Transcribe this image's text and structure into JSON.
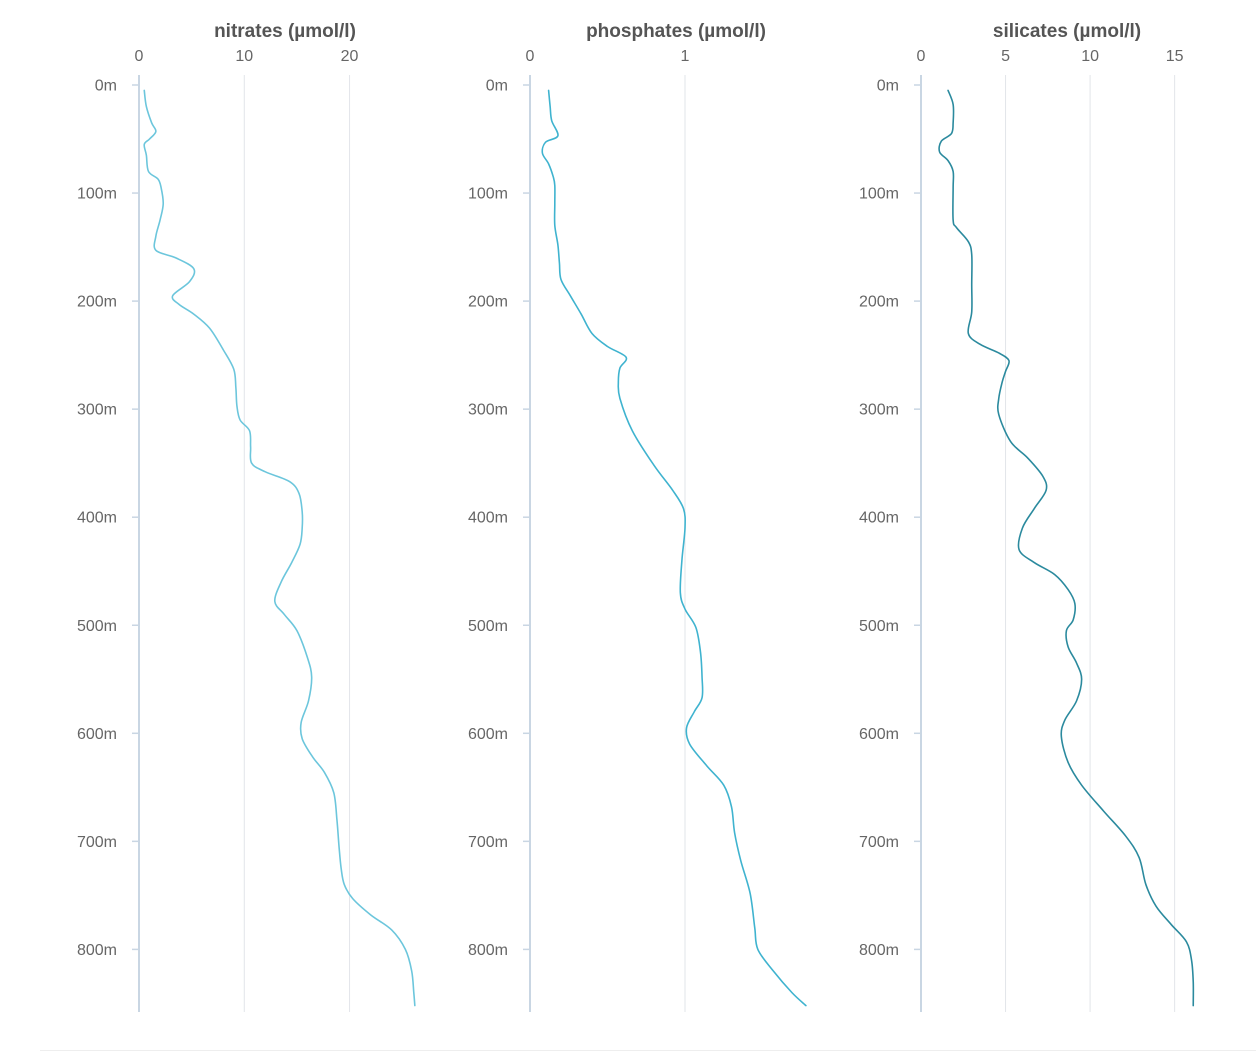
{
  "chart_data": [
    {
      "type": "line",
      "title": "nitrates (µmol/l)",
      "xlabel": "nitrates (µmol/l)",
      "ylabel": "",
      "xlim": [
        0,
        26.5
      ],
      "ylim": [
        0,
        860
      ],
      "y_reversed": true,
      "grid": true,
      "x_ticks": [
        0,
        10,
        20
      ],
      "x_tick_labels": [
        "0",
        "10",
        "20"
      ],
      "y_ticks": [
        0,
        100,
        200,
        300,
        400,
        500,
        600,
        700,
        800
      ],
      "y_tick_labels": [
        "0m",
        "100m",
        "200m",
        "300m",
        "400m",
        "500m",
        "600m",
        "700m",
        "800m"
      ],
      "color": "#6cc6dc",
      "series": [
        {
          "points": [
            [
              0.5,
              5
            ],
            [
              0.7,
              20
            ],
            [
              1.2,
              35
            ],
            [
              1.6,
              43
            ],
            [
              1.0,
              50
            ],
            [
              0.5,
              55
            ],
            [
              0.7,
              65
            ],
            [
              0.9,
              80
            ],
            [
              1.8,
              87
            ],
            [
              2.1,
              95
            ],
            [
              2.3,
              110
            ],
            [
              2.0,
              125
            ],
            [
              1.6,
              140
            ],
            [
              1.6,
              153
            ],
            [
              3.5,
              160
            ],
            [
              5.2,
              170
            ],
            [
              4.8,
              182
            ],
            [
              3.2,
              195
            ],
            [
              3.8,
              203
            ],
            [
              5.2,
              212
            ],
            [
              6.7,
              225
            ],
            [
              8.0,
              245
            ],
            [
              9.0,
              263
            ],
            [
              9.2,
              280
            ],
            [
              9.3,
              297
            ],
            [
              9.6,
              310
            ],
            [
              10.5,
              320
            ],
            [
              10.6,
              335
            ],
            [
              10.7,
              350
            ],
            [
              12.0,
              358
            ],
            [
              14.3,
              367
            ],
            [
              15.2,
              378
            ],
            [
              15.5,
              395
            ],
            [
              15.5,
              410
            ],
            [
              15.3,
              425
            ],
            [
              14.5,
              442
            ],
            [
              13.5,
              460
            ],
            [
              12.9,
              478
            ],
            [
              13.8,
              490
            ],
            [
              15.0,
              505
            ],
            [
              16.0,
              530
            ],
            [
              16.4,
              548
            ],
            [
              16.1,
              570
            ],
            [
              15.4,
              590
            ],
            [
              15.5,
              605
            ],
            [
              16.5,
              622
            ],
            [
              17.6,
              636
            ],
            [
              18.5,
              655
            ],
            [
              18.8,
              680
            ],
            [
              19.0,
              705
            ],
            [
              19.2,
              725
            ],
            [
              19.5,
              740
            ],
            [
              20.3,
              753
            ],
            [
              22.0,
              768
            ],
            [
              24.0,
              782
            ],
            [
              25.3,
              800
            ],
            [
              25.9,
              820
            ],
            [
              26.1,
              840
            ],
            [
              26.2,
              852
            ]
          ]
        }
      ]
    },
    {
      "type": "line",
      "title": "phosphates (µmol/l)",
      "xlabel": "phosphates (µmol/l)",
      "ylabel": "",
      "xlim": [
        0,
        1.8
      ],
      "ylim": [
        0,
        860
      ],
      "y_reversed": true,
      "grid": true,
      "x_ticks": [
        0,
        1
      ],
      "x_tick_labels": [
        "0",
        "1"
      ],
      "y_ticks": [
        0,
        100,
        200,
        300,
        400,
        500,
        600,
        700,
        800
      ],
      "y_tick_labels": [
        "0m",
        "100m",
        "200m",
        "300m",
        "400m",
        "500m",
        "600m",
        "700m",
        "800m"
      ],
      "color": "#3fb3cf",
      "series": [
        {
          "points": [
            [
              0.12,
              5
            ],
            [
              0.13,
              20
            ],
            [
              0.14,
              33
            ],
            [
              0.18,
              47
            ],
            [
              0.1,
              53
            ],
            [
              0.08,
              63
            ],
            [
              0.12,
              73
            ],
            [
              0.15,
              85
            ],
            [
              0.16,
              93
            ],
            [
              0.16,
              110
            ],
            [
              0.16,
              130
            ],
            [
              0.18,
              148
            ],
            [
              0.19,
              165
            ],
            [
              0.2,
              180
            ],
            [
              0.26,
              195
            ],
            [
              0.33,
              212
            ],
            [
              0.4,
              230
            ],
            [
              0.5,
              242
            ],
            [
              0.62,
              252
            ],
            [
              0.58,
              262
            ],
            [
              0.57,
              275
            ],
            [
              0.58,
              290
            ],
            [
              0.66,
              320
            ],
            [
              0.8,
              352
            ],
            [
              0.92,
              375
            ],
            [
              0.99,
              392
            ],
            [
              1.0,
              410
            ],
            [
              0.98,
              440
            ],
            [
              0.97,
              470
            ],
            [
              1.0,
              485
            ],
            [
              1.07,
              502
            ],
            [
              1.1,
              525
            ],
            [
              1.11,
              548
            ],
            [
              1.11,
              567
            ],
            [
              1.06,
              580
            ],
            [
              1.01,
              595
            ],
            [
              1.03,
              610
            ],
            [
              1.14,
              630
            ],
            [
              1.25,
              648
            ],
            [
              1.3,
              668
            ],
            [
              1.32,
              692
            ],
            [
              1.36,
              718
            ],
            [
              1.42,
              748
            ],
            [
              1.45,
              780
            ],
            [
              1.47,
              800
            ],
            [
              1.57,
              820
            ],
            [
              1.69,
              840
            ],
            [
              1.78,
              852
            ]
          ]
        }
      ]
    },
    {
      "type": "line",
      "title": "silicates (µmol/l)",
      "xlabel": "silicates (µmol/l)",
      "ylabel": "",
      "xlim": [
        0,
        16.5
      ],
      "ylim": [
        0,
        860
      ],
      "y_reversed": true,
      "grid": true,
      "x_ticks": [
        0,
        5,
        10,
        15
      ],
      "x_tick_labels": [
        "0",
        "5",
        "10",
        "15"
      ],
      "y_ticks": [
        0,
        100,
        200,
        300,
        400,
        500,
        600,
        700,
        800
      ],
      "y_tick_labels": [
        "0m",
        "100m",
        "200m",
        "300m",
        "400m",
        "500m",
        "600m",
        "700m",
        "800m"
      ],
      "color": "#2b8a9e",
      "series": [
        {
          "points": [
            [
              1.6,
              5
            ],
            [
              1.9,
              18
            ],
            [
              1.9,
              35
            ],
            [
              1.8,
              45
            ],
            [
              1.2,
              52
            ],
            [
              1.1,
              62
            ],
            [
              1.6,
              70
            ],
            [
              1.9,
              80
            ],
            [
              1.9,
              95
            ],
            [
              1.9,
              125
            ],
            [
              2.1,
              132
            ],
            [
              2.8,
              145
            ],
            [
              3.0,
              157
            ],
            [
              3.0,
              185
            ],
            [
              3.0,
              210
            ],
            [
              2.8,
              230
            ],
            [
              3.5,
              240
            ],
            [
              4.6,
              248
            ],
            [
              5.2,
              255
            ],
            [
              5.0,
              265
            ],
            [
              4.8,
              275
            ],
            [
              4.6,
              290
            ],
            [
              4.6,
              305
            ],
            [
              5.3,
              330
            ],
            [
              6.3,
              345
            ],
            [
              7.2,
              362
            ],
            [
              7.4,
              375
            ],
            [
              6.7,
              392
            ],
            [
              6.0,
              410
            ],
            [
              5.8,
              430
            ],
            [
              6.7,
              442
            ],
            [
              7.9,
              453
            ],
            [
              8.7,
              467
            ],
            [
              9.1,
              480
            ],
            [
              9.0,
              495
            ],
            [
              8.6,
              505
            ],
            [
              8.7,
              520
            ],
            [
              9.2,
              535
            ],
            [
              9.5,
              550
            ],
            [
              9.2,
              570
            ],
            [
              8.5,
              588
            ],
            [
              8.3,
              603
            ],
            [
              8.7,
              627
            ],
            [
              9.5,
              648
            ],
            [
              10.8,
              672
            ],
            [
              12.1,
              695
            ],
            [
              12.9,
              715
            ],
            [
              13.3,
              740
            ],
            [
              13.9,
              760
            ],
            [
              14.8,
              777
            ],
            [
              15.7,
              793
            ],
            [
              16.0,
              810
            ],
            [
              16.1,
              830
            ],
            [
              16.1,
              852
            ]
          ]
        }
      ]
    }
  ]
}
